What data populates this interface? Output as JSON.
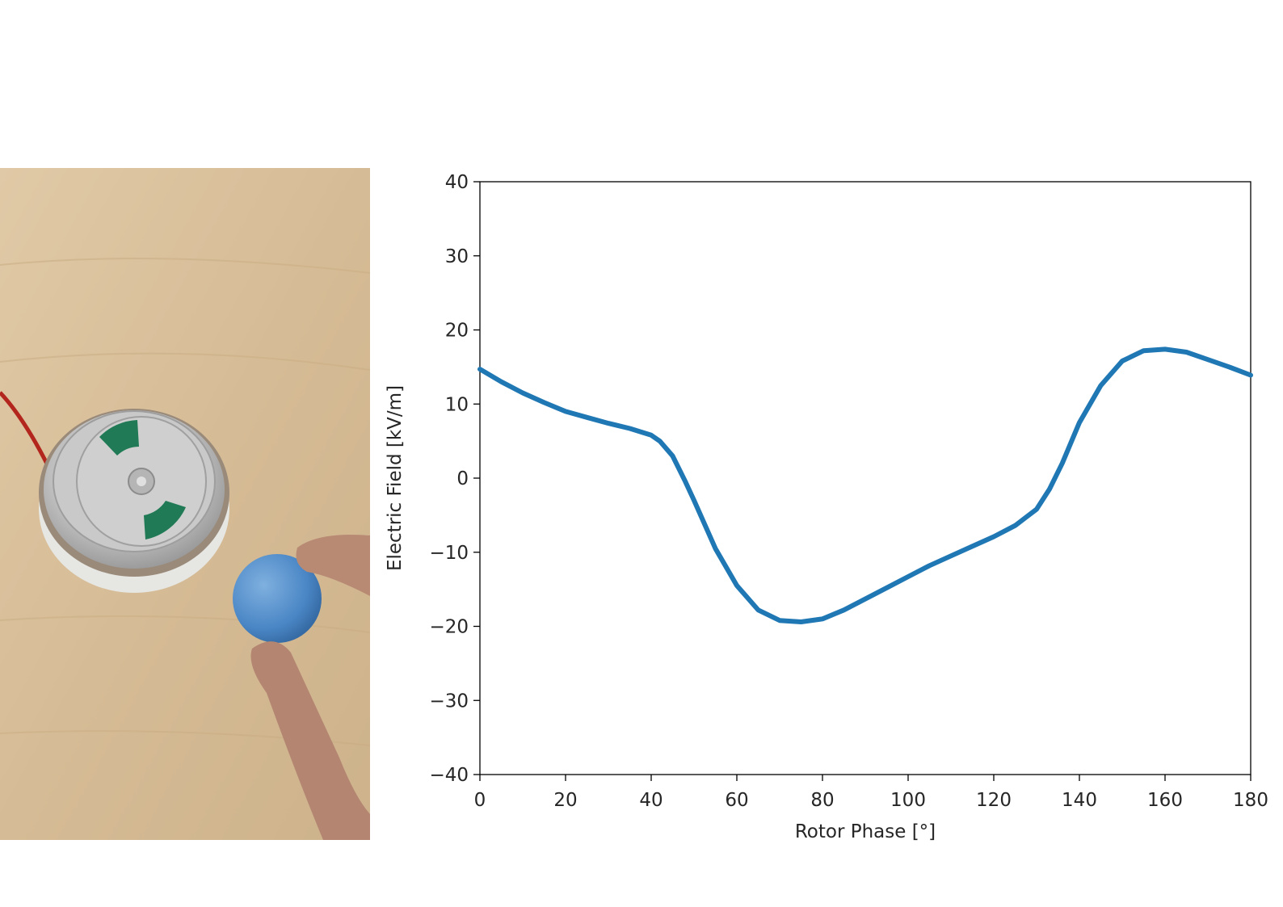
{
  "photo": {
    "description_icon": "device-photo-icon"
  },
  "chart_data": {
    "type": "line",
    "title": "",
    "xlabel": "Rotor Phase [°]",
    "ylabel": "Electric Field [kV/m]",
    "xlim": [
      0,
      180
    ],
    "ylim": [
      -40,
      40
    ],
    "xticks": [
      0,
      20,
      40,
      60,
      80,
      100,
      120,
      140,
      160,
      180
    ],
    "xtick_labels": [
      "0",
      "20",
      "40",
      "60",
      "80",
      "100",
      "120",
      "140",
      "160",
      "180"
    ],
    "yticks": [
      40,
      30,
      20,
      10,
      0,
      -10,
      -20,
      -30,
      -40
    ],
    "ytick_labels": [
      "40",
      "30",
      "20",
      "10",
      "0",
      "−10",
      "−20",
      "−30",
      "−40"
    ],
    "grid": false,
    "color": "#1f77b4",
    "series": [
      {
        "x": [
          0,
          5,
          10,
          15,
          20,
          25,
          30,
          35,
          40,
          42,
          45,
          48,
          50,
          55,
          60,
          65,
          70,
          75,
          80,
          85,
          90,
          95,
          100,
          105,
          110,
          115,
          120,
          125,
          130,
          133,
          136,
          140,
          145,
          150,
          155,
          160,
          165,
          170,
          175,
          180
        ],
        "values": [
          14.7,
          13.0,
          11.5,
          10.2,
          9.0,
          8.2,
          7.4,
          6.7,
          5.8,
          5.0,
          3.0,
          -0.5,
          -3.0,
          -9.5,
          -14.5,
          -17.8,
          -19.2,
          -19.4,
          -19.0,
          -17.8,
          -16.3,
          -14.8,
          -13.3,
          -11.8,
          -10.5,
          -9.2,
          -7.9,
          -6.4,
          -4.2,
          -1.5,
          2.0,
          7.5,
          12.5,
          15.8,
          17.2,
          17.4,
          17.0,
          16.0,
          15.0,
          13.9
        ]
      }
    ]
  }
}
